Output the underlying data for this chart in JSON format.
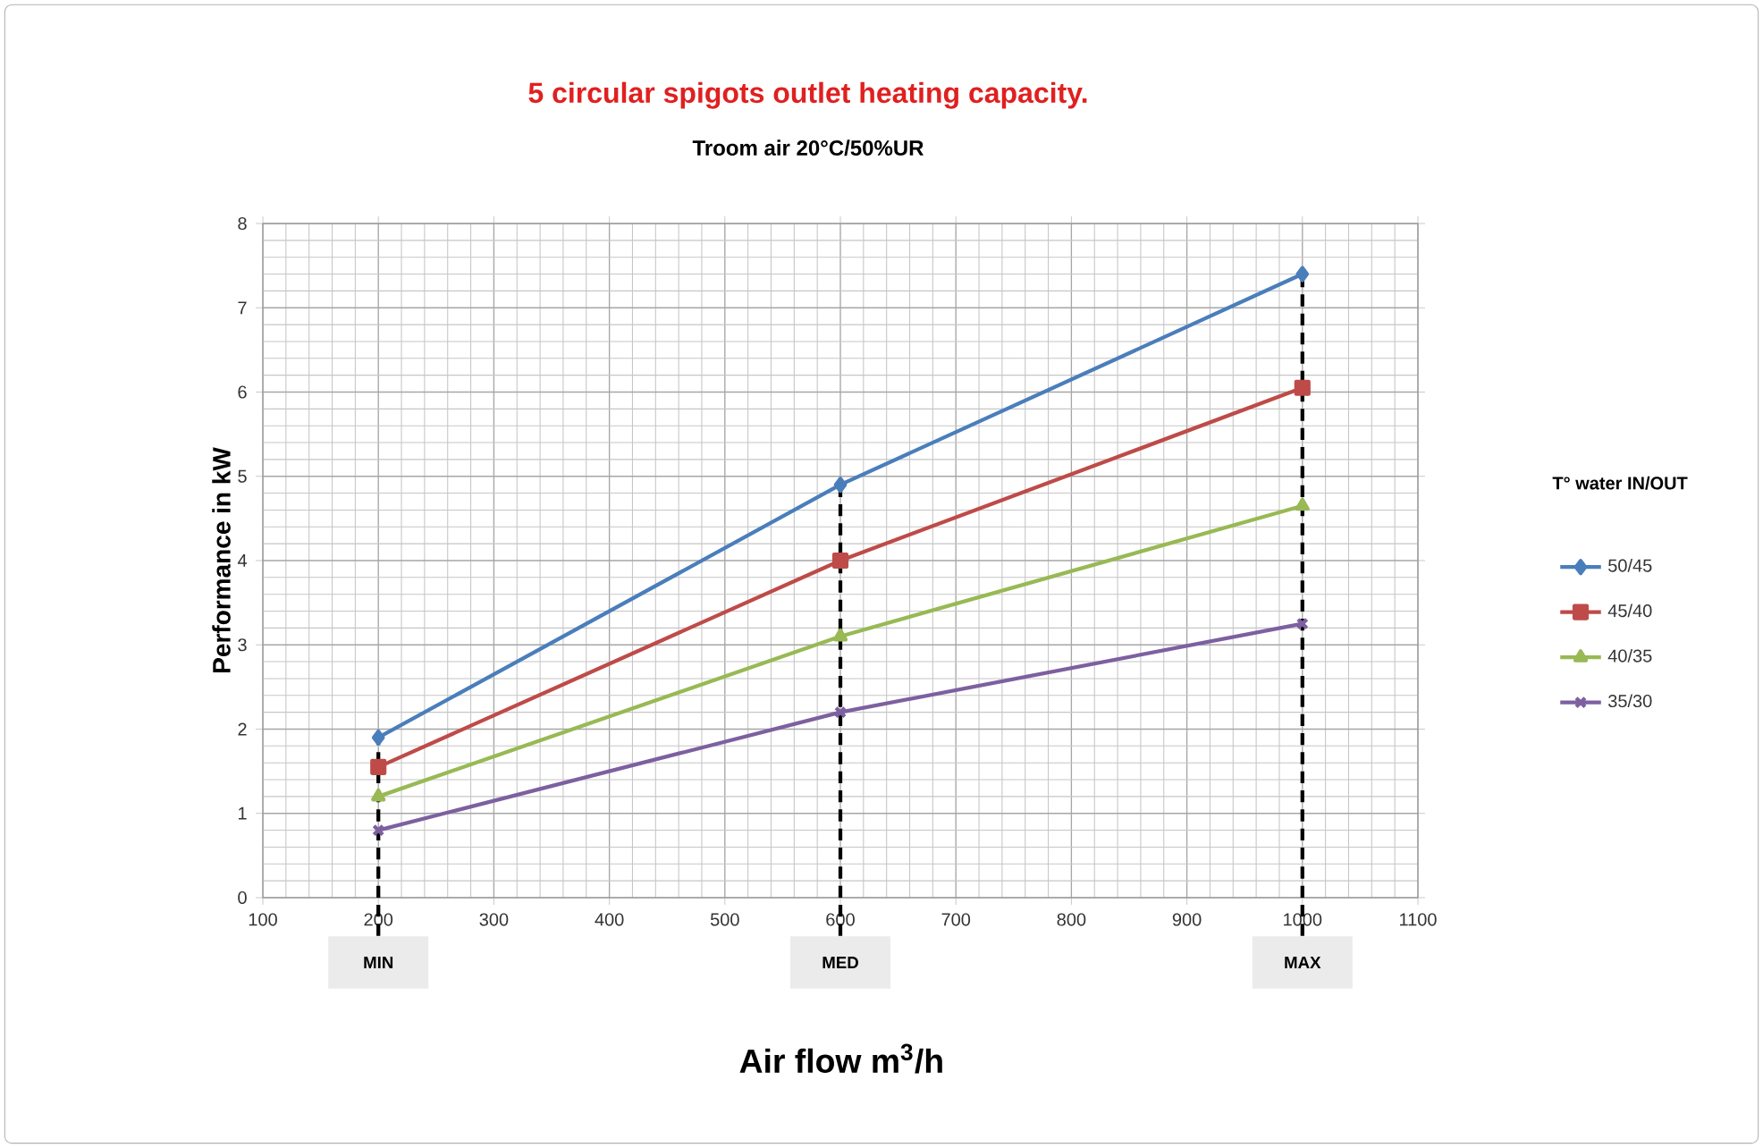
{
  "chart_data": {
    "type": "line",
    "title": "5 circular spigots outlet heating capacity.",
    "subtitle": "Troom air 20°C/50%UR",
    "xlabel": "Air flow m$^{3}$/h",
    "ylabel": "Performance in kW",
    "legend_title": "T° water IN/OUT",
    "x": [
      200,
      600,
      1000
    ],
    "series": [
      {
        "name": "50/45",
        "color": "#4a7ebb",
        "marker": "diamond",
        "values": [
          1.9,
          4.9,
          7.4
        ]
      },
      {
        "name": "45/40",
        "color": "#be4b48",
        "marker": "square",
        "values": [
          1.55,
          4.0,
          6.05
        ]
      },
      {
        "name": "40/35",
        "color": "#98b954",
        "marker": "triangle",
        "values": [
          1.2,
          3.1,
          4.65
        ]
      },
      {
        "name": "35/30",
        "color": "#7d60a0",
        "marker": "cross",
        "values": [
          0.8,
          2.2,
          3.25
        ]
      }
    ],
    "xlim": [
      100,
      1100
    ],
    "xticks": [
      100,
      200,
      300,
      400,
      500,
      600,
      700,
      800,
      900,
      1000,
      1100
    ],
    "ylim": [
      0,
      8
    ],
    "yticks": [
      0,
      1,
      2,
      3,
      4,
      5,
      6,
      7,
      8
    ],
    "grid": true,
    "legend": "right",
    "line_style": "solid",
    "ref_lines": [
      {
        "axis": "x",
        "value": 200,
        "label": "MIN",
        "color": "#000000",
        "line_style": "dashed"
      },
      {
        "axis": "x",
        "value": 600,
        "label": "MED",
        "color": "#000000",
        "line_style": "dashed"
      },
      {
        "axis": "x",
        "value": 1000,
        "label": "MAX",
        "color": "#000000",
        "line_style": "dashed"
      }
    ]
  }
}
